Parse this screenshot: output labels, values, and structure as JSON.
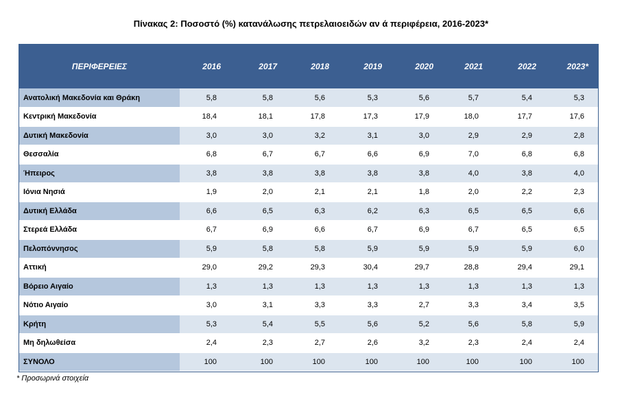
{
  "title": "Πίνακας 2: Ποσοστό (%) κατανάλωσης πετρελαιοειδών αν ά περιφέρεια, 2016-2023*",
  "header": {
    "region_label": "ΠΕΡΙΦΕΡΕΙΕΣ",
    "years": [
      "2016",
      "2017",
      "2018",
      "2019",
      "2020",
      "2021",
      "2022",
      "2023*"
    ]
  },
  "rows": [
    {
      "region": "Ανατολική Μακεδονία και Θράκη",
      "values": [
        "5,8",
        "5,8",
        "5,6",
        "5,3",
        "5,6",
        "5,7",
        "5,4",
        "5,3"
      ]
    },
    {
      "region": "Κεντρική Μακεδονία",
      "values": [
        "18,4",
        "18,1",
        "17,8",
        "17,3",
        "17,9",
        "18,0",
        "17,7",
        "17,6"
      ]
    },
    {
      "region": "Δυτική Μακεδονία",
      "values": [
        "3,0",
        "3,0",
        "3,2",
        "3,1",
        "3,0",
        "2,9",
        "2,9",
        "2,8"
      ]
    },
    {
      "region": "Θεσσαλία",
      "values": [
        "6,8",
        "6,7",
        "6,7",
        "6,6",
        "6,9",
        "7,0",
        "6,8",
        "6,8"
      ]
    },
    {
      "region": "Ήπειρος",
      "values": [
        "3,8",
        "3,8",
        "3,8",
        "3,8",
        "3,8",
        "4,0",
        "3,8",
        "4,0"
      ]
    },
    {
      "region": "Ιόνια Νησιά",
      "values": [
        "1,9",
        "2,0",
        "2,1",
        "2,1",
        "1,8",
        "2,0",
        "2,2",
        "2,3"
      ]
    },
    {
      "region": "Δυτική Ελλάδα",
      "values": [
        "6,6",
        "6,5",
        "6,3",
        "6,2",
        "6,3",
        "6,5",
        "6,5",
        "6,6"
      ]
    },
    {
      "region": "Στερεά Ελλάδα",
      "values": [
        "6,7",
        "6,9",
        "6,6",
        "6,7",
        "6,9",
        "6,7",
        "6,5",
        "6,5"
      ]
    },
    {
      "region": "Πελοπόννησος",
      "values": [
        "5,9",
        "5,8",
        "5,8",
        "5,9",
        "5,9",
        "5,9",
        "5,9",
        "6,0"
      ]
    },
    {
      "region": "Αττική",
      "values": [
        "29,0",
        "29,2",
        "29,3",
        "30,4",
        "29,7",
        "28,8",
        "29,4",
        "29,1"
      ]
    },
    {
      "region": "Βόρειο Αιγαίο",
      "values": [
        "1,3",
        "1,3",
        "1,3",
        "1,3",
        "1,3",
        "1,3",
        "1,3",
        "1,3"
      ]
    },
    {
      "region": "Νότιο Αιγαίο",
      "values": [
        "3,0",
        "3,1",
        "3,3",
        "3,3",
        "2,7",
        "3,3",
        "3,4",
        "3,5"
      ]
    },
    {
      "region": "Κρήτη",
      "values": [
        "5,3",
        "5,4",
        "5,5",
        "5,6",
        "5,2",
        "5,6",
        "5,8",
        "5,9"
      ]
    },
    {
      "region": "Μη δηλωθείσα",
      "values": [
        "2,4",
        "2,3",
        "2,7",
        "2,6",
        "3,2",
        "2,3",
        "2,4",
        "2,4"
      ]
    },
    {
      "region": "ΣΥΝΟΛΟ",
      "values": [
        "100",
        "100",
        "100",
        "100",
        "100",
        "100",
        "100",
        "100"
      ]
    }
  ],
  "footnote": "* Προσωρινά στοιχεία",
  "colors": {
    "header_bg": "#3c5f91",
    "region_stripe": "#b5c7dd",
    "value_stripe": "#dce5ef"
  }
}
